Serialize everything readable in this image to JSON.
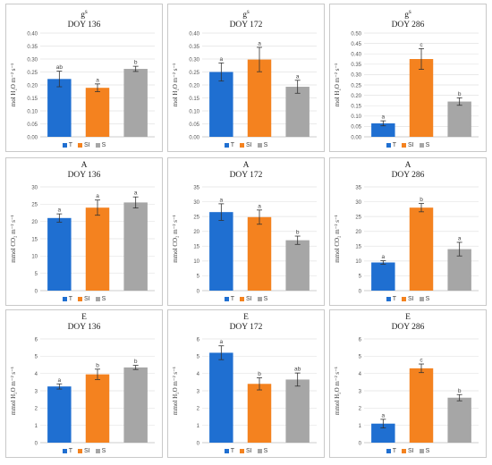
{
  "legend": [
    {
      "label": "T",
      "color": "#1f6fd1"
    },
    {
      "label": "SI",
      "color": "#f4821f"
    },
    {
      "label": "S",
      "color": "#a6a6a6"
    }
  ],
  "chart_data": [
    {
      "type": "bar",
      "title": "g",
      "title_sup": "s",
      "subtitle": "DOY 136",
      "ylabel": "mol H₂O m⁻² s⁻¹",
      "ylim": [
        0,
        0.4
      ],
      "yticks": [
        0.0,
        0.05,
        0.1,
        0.15,
        0.2,
        0.25,
        0.3,
        0.35,
        0.4
      ],
      "tick_decimals": 2,
      "categories": [
        "T",
        "SI",
        "S"
      ],
      "values": [
        0.223,
        0.189,
        0.262
      ],
      "errors": [
        0.03,
        0.015,
        0.01
      ],
      "letters": [
        "ab",
        "a",
        "b"
      ]
    },
    {
      "type": "bar",
      "title": "g",
      "title_sup": "s",
      "subtitle": "DOY 172",
      "ylabel": "mol H₂O m⁻² s⁻¹",
      "ylim": [
        0,
        0.4
      ],
      "yticks": [
        0.0,
        0.05,
        0.1,
        0.15,
        0.2,
        0.25,
        0.3,
        0.35,
        0.4
      ],
      "tick_decimals": 2,
      "categories": [
        "T",
        "SI",
        "S"
      ],
      "values": [
        0.25,
        0.298,
        0.193
      ],
      "errors": [
        0.035,
        0.047,
        0.025
      ],
      "letters": [
        "a",
        "a",
        "a"
      ]
    },
    {
      "type": "bar",
      "title": "g",
      "title_sup": "s",
      "subtitle": "DOY 286",
      "ylabel": "mol H₂O m⁻² s⁻¹",
      "ylim": [
        0,
        0.5
      ],
      "yticks": [
        0.0,
        0.05,
        0.1,
        0.15,
        0.2,
        0.25,
        0.3,
        0.35,
        0.4,
        0.45,
        0.5
      ],
      "tick_decimals": 2,
      "categories": [
        "T",
        "SI",
        "S"
      ],
      "values": [
        0.065,
        0.375,
        0.17
      ],
      "errors": [
        0.012,
        0.05,
        0.018
      ],
      "letters": [
        "a",
        "c",
        "b"
      ]
    },
    {
      "type": "bar",
      "title": "A",
      "subtitle": "DOY 136",
      "ylabel": "mmol CO₂ m⁻² s⁻¹",
      "ylim": [
        0,
        30
      ],
      "yticks": [
        0,
        5,
        10,
        15,
        20,
        25,
        30
      ],
      "tick_decimals": 0,
      "categories": [
        "T",
        "SI",
        "S"
      ],
      "values": [
        21.0,
        24.0,
        25.5
      ],
      "errors": [
        1.2,
        2.2,
        1.6
      ],
      "letters": [
        "a",
        "a",
        "a"
      ]
    },
    {
      "type": "bar",
      "title": "A",
      "subtitle": "DOY 172",
      "ylabel": "mmol CO₂ m⁻² s⁻¹",
      "ylim": [
        0,
        35
      ],
      "yticks": [
        0,
        5,
        10,
        15,
        20,
        25,
        30,
        35
      ],
      "tick_decimals": 0,
      "categories": [
        "T",
        "SI",
        "S"
      ],
      "values": [
        26.5,
        24.8,
        17.0
      ],
      "errors": [
        2.8,
        2.4,
        1.4
      ],
      "letters": [
        "a",
        "a",
        "b"
      ]
    },
    {
      "type": "bar",
      "title": "A",
      "subtitle": "DOY 286",
      "ylabel": "mmol CO₂ m⁻² s⁻¹",
      "ylim": [
        0,
        35
      ],
      "yticks": [
        0,
        5,
        10,
        15,
        20,
        25,
        30,
        35
      ],
      "tick_decimals": 0,
      "categories": [
        "T",
        "SI",
        "S"
      ],
      "values": [
        9.5,
        28.0,
        14.0
      ],
      "errors": [
        0.6,
        1.4,
        2.3
      ],
      "letters": [
        "a",
        "b",
        "a"
      ]
    },
    {
      "type": "bar",
      "title": "E",
      "subtitle": "DOY 136",
      "ylabel": "mmol H₂O m⁻² s⁻¹",
      "ylim": [
        0,
        6
      ],
      "yticks": [
        0,
        1,
        2,
        3,
        4,
        5,
        6
      ],
      "tick_decimals": 0,
      "categories": [
        "T",
        "SI",
        "S"
      ],
      "values": [
        3.25,
        3.95,
        4.35
      ],
      "errors": [
        0.15,
        0.3,
        0.12
      ],
      "letters": [
        "a",
        "b",
        "b"
      ]
    },
    {
      "type": "bar",
      "title": "E",
      "subtitle": "DOY 172",
      "ylabel": "mmol H₂O m⁻² s⁻¹",
      "ylim": [
        0,
        6
      ],
      "yticks": [
        0,
        1,
        2,
        3,
        4,
        5,
        6
      ],
      "tick_decimals": 0,
      "categories": [
        "T",
        "SI",
        "S"
      ],
      "values": [
        5.2,
        3.4,
        3.65
      ],
      "errors": [
        0.4,
        0.35,
        0.38
      ],
      "letters": [
        "a",
        "b",
        "ab"
      ]
    },
    {
      "type": "bar",
      "title": "E",
      "subtitle": "DOY 286",
      "ylabel": "mmol H₂O m⁻² s⁻¹",
      "ylim": [
        0,
        6
      ],
      "yticks": [
        0,
        1,
        2,
        3,
        4,
        5,
        6
      ],
      "tick_decimals": 0,
      "categories": [
        "T",
        "SI",
        "S"
      ],
      "values": [
        1.1,
        4.3,
        2.6
      ],
      "errors": [
        0.25,
        0.25,
        0.18
      ],
      "letters": [
        "a",
        "c",
        "b"
      ]
    }
  ]
}
